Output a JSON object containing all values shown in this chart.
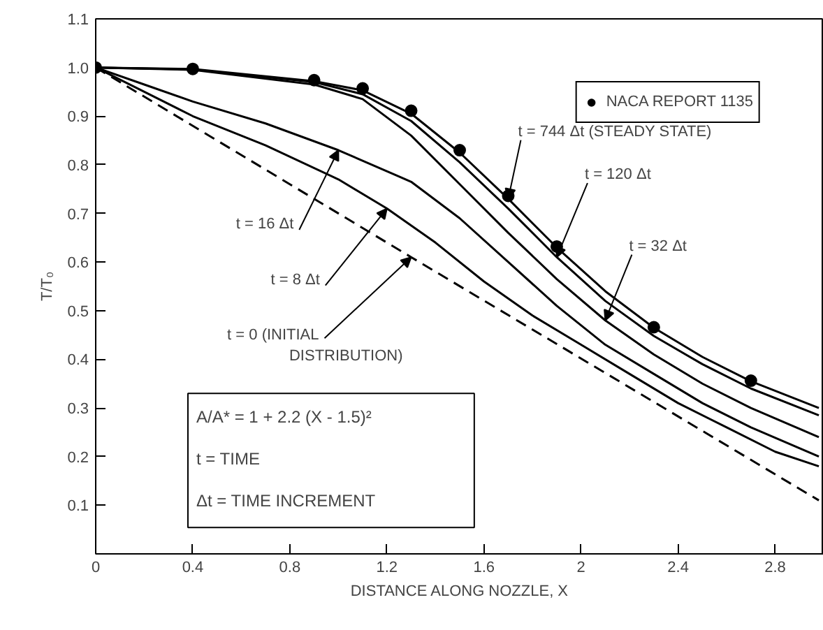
{
  "chart_data": {
    "type": "line",
    "xlabel": "DISTANCE ALONG NOZZLE, X",
    "ylabel": "T/T₀",
    "xlim": [
      0,
      3.0
    ],
    "ylim": [
      0,
      1.1
    ],
    "xticks": [
      0,
      0.4,
      0.8,
      1.2,
      1.6,
      2.0,
      2.4,
      2.8
    ],
    "yticks": [
      0.1,
      0.2,
      0.3,
      0.4,
      0.5,
      0.6,
      0.7,
      0.8,
      0.9,
      {
        "value": 1.0,
        "label": "1.0"
      },
      1.1
    ],
    "grid": false,
    "legend": "top right",
    "marker": "none",
    "series": [
      {
        "color": "#000000",
        "x": [
          0,
          0.4,
          0.9,
          1.1,
          1.3,
          1.5,
          1.7,
          1.9,
          2.1,
          2.3,
          2.5,
          2.7,
          2.98
        ],
        "values": [
          1.0,
          0.997,
          0.972,
          0.953,
          0.905,
          0.825,
          0.73,
          0.63,
          0.54,
          0.465,
          0.405,
          0.355,
          0.3
        ]
      },
      {
        "color": "#000000",
        "x": [
          0,
          0.4,
          0.9,
          1.1,
          1.3,
          1.5,
          1.7,
          1.9,
          2.1,
          2.3,
          2.5,
          2.7,
          2.98
        ],
        "values": [
          1.0,
          0.996,
          0.97,
          0.945,
          0.89,
          0.805,
          0.71,
          0.61,
          0.52,
          0.448,
          0.39,
          0.34,
          0.285
        ]
      },
      {
        "color": "#000000",
        "x": [
          0,
          0.4,
          0.9,
          1.1,
          1.3,
          1.5,
          1.7,
          1.9,
          2.1,
          2.3,
          2.5,
          2.7,
          2.98
        ],
        "values": [
          1.0,
          0.995,
          0.965,
          0.935,
          0.86,
          0.76,
          0.66,
          0.565,
          0.48,
          0.41,
          0.35,
          0.3,
          0.24
        ]
      },
      {
        "color": "#000000",
        "x": [
          0,
          0.2,
          0.4,
          0.7,
          1.0,
          1.3,
          1.5,
          1.7,
          1.9,
          2.1,
          2.3,
          2.5,
          2.7,
          2.98
        ],
        "values": [
          1.0,
          0.965,
          0.93,
          0.885,
          0.83,
          0.765,
          0.69,
          0.6,
          0.51,
          0.43,
          0.37,
          0.31,
          0.26,
          0.2
        ]
      },
      {
        "color": "#000000",
        "x": [
          0,
          0.2,
          0.4,
          0.7,
          1.0,
          1.2,
          1.4,
          1.6,
          1.8,
          2.0,
          2.2,
          2.4,
          2.6,
          2.8,
          2.98
        ],
        "values": [
          1.0,
          0.95,
          0.9,
          0.84,
          0.77,
          0.71,
          0.64,
          0.56,
          0.49,
          0.43,
          0.37,
          0.31,
          0.26,
          0.21,
          0.18
        ]
      },
      {
        "color": "#000000",
        "line_style": "dashed",
        "x": [
          0,
          1.3,
          2.98
        ],
        "values": [
          1.0,
          0.61,
          0.11
        ]
      },
      {
        "name": "NACA REPORT 1135",
        "type": "scatter",
        "marker": "circle",
        "color": "#000000",
        "x": [
          0,
          0.4,
          0.9,
          1.1,
          1.3,
          1.5,
          1.7,
          1.9,
          2.3,
          2.7
        ],
        "values": [
          1.0,
          0.997,
          0.974,
          0.957,
          0.911,
          0.83,
          0.736,
          0.632,
          0.466,
          0.356
        ]
      }
    ],
    "annotations": [
      {
        "text": "t = 744 Δt (STEADY STATE)",
        "x": 1.7,
        "y": 0.73
      },
      {
        "text": "t = 120 Δt",
        "x": 1.9,
        "y": 0.61
      },
      {
        "text": "t = 32 Δt",
        "x": 2.1,
        "y": 0.48
      },
      {
        "text": "t = 16 Δt",
        "x": 1.0,
        "y": 0.83
      },
      {
        "text": "t = 8 Δt",
        "x": 1.2,
        "y": 0.71
      },
      {
        "text": "t = 0 (INITIAL DISTRIBUTION)",
        "x": 1.3,
        "y": 0.61
      },
      "A/A* = 1 + 2.2 (X - 1.5)²",
      "t = TIME",
      "Δt = TIME INCREMENT"
    ]
  }
}
